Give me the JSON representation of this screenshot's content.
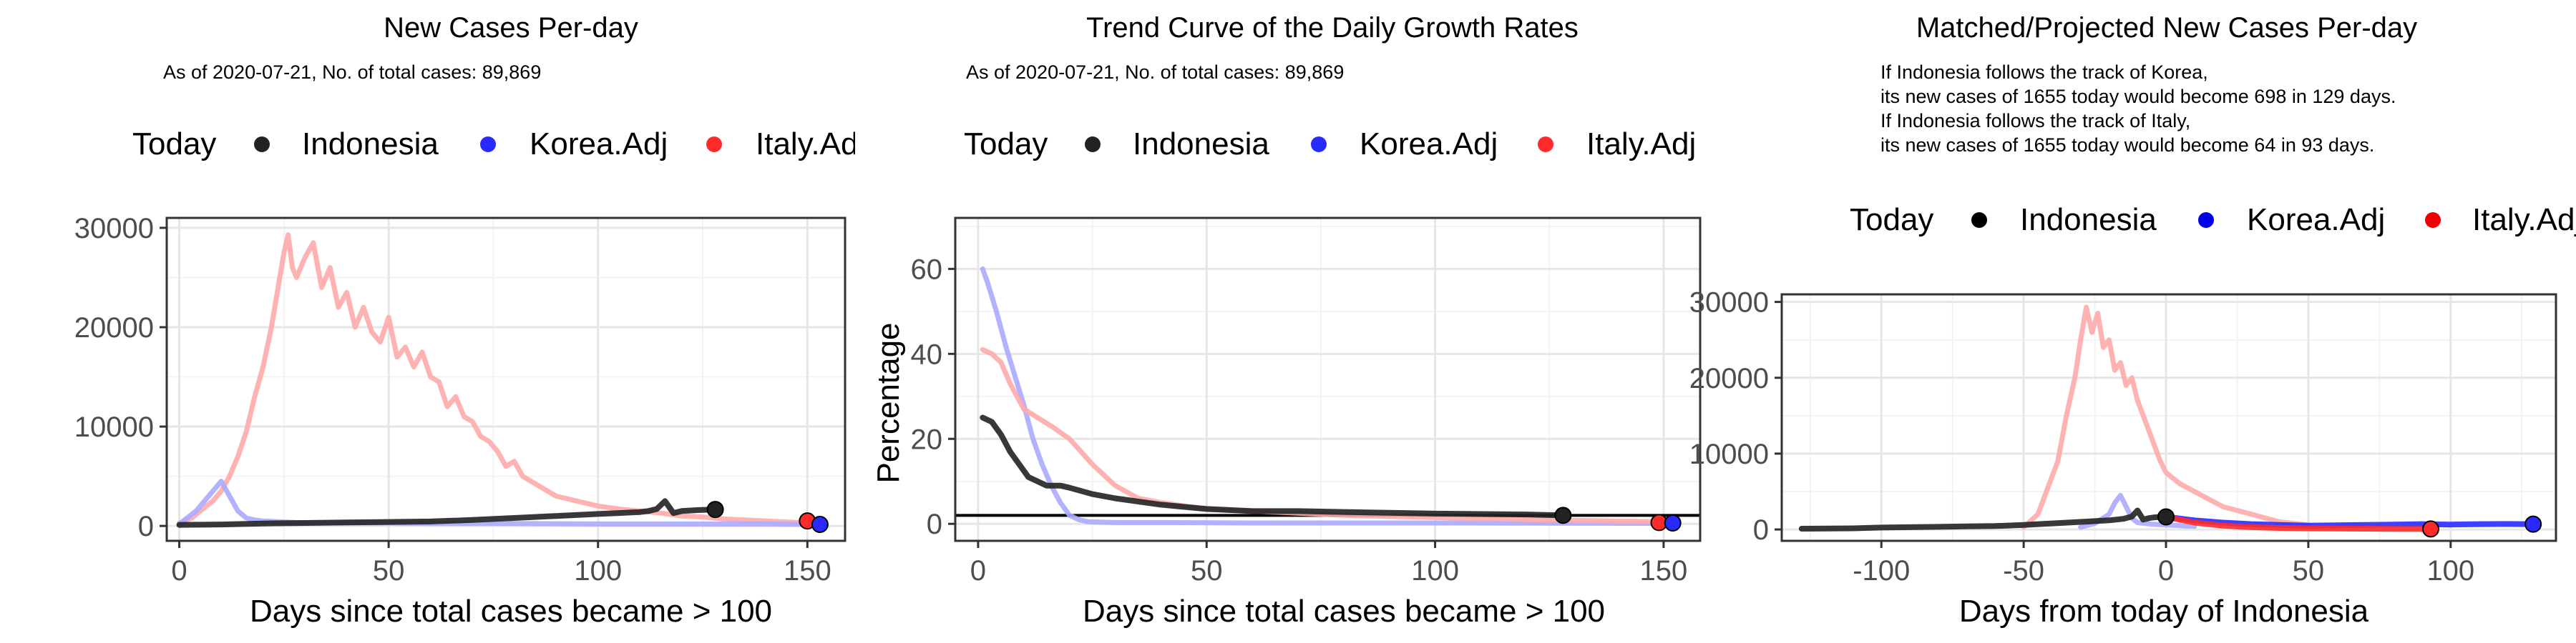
{
  "colors": {
    "today": "#222222",
    "indonesia": "#222222",
    "korea": "#2a2aff",
    "italy": "#ff2a2a",
    "korea_faded": "#aaaaff",
    "italy_faded": "#ffaaaa",
    "grid_major": "#e6e6e6",
    "grid_minor": "#f3f3f3"
  },
  "legend_labels": [
    "Today",
    "Indonesia",
    "Korea.Adj",
    "Italy.Adj"
  ],
  "chart_data": [
    {
      "type": "line",
      "title": "New Cases Per-day",
      "subtitle": "As of 2020-07-21, No. of total cases: 89,869",
      "xlabel": "Days since total cases became > 100",
      "ylabel": "",
      "xlim": [
        -3,
        159
      ],
      "ylim": [
        -1500,
        31000
      ],
      "xticks": [
        0,
        50,
        100,
        150
      ],
      "yticks": [
        0,
        10000,
        20000,
        30000
      ],
      "legend": [
        "Today",
        "Indonesia",
        "Korea.Adj",
        "Italy.Adj"
      ],
      "legend_position": "top",
      "grid": true,
      "series": [
        {
          "name": "Italy.Adj",
          "style": "faded",
          "color": "#ffaaaa",
          "x": [
            0,
            3,
            5,
            8,
            10,
            12,
            14,
            16,
            18,
            20,
            22,
            24,
            25,
            26,
            27,
            28,
            30,
            32,
            34,
            36,
            38,
            40,
            42,
            44,
            46,
            48,
            50,
            52,
            54,
            56,
            58,
            60,
            62,
            64,
            66,
            68,
            70,
            72,
            74,
            76,
            78,
            80,
            82,
            84,
            86,
            88,
            90,
            95,
            100,
            105,
            110,
            115,
            120,
            125,
            130,
            135,
            140,
            145,
            150
          ],
          "y": [
            300,
            800,
            1500,
            2500,
            3500,
            5000,
            7000,
            9500,
            13000,
            16000,
            20000,
            25000,
            27500,
            29300,
            26000,
            25000,
            27000,
            28500,
            24000,
            26000,
            22000,
            23500,
            20000,
            22000,
            19500,
            18500,
            21000,
            17000,
            18000,
            16000,
            17500,
            15000,
            14500,
            12000,
            13000,
            11000,
            10500,
            9000,
            8500,
            7500,
            6000,
            6500,
            5000,
            4500,
            4000,
            3500,
            3000,
            2500,
            2000,
            1700,
            1500,
            1300,
            1000,
            900,
            700,
            600,
            500,
            400,
            300
          ]
        },
        {
          "name": "Korea.Adj",
          "style": "faded",
          "color": "#aaaaff",
          "x": [
            0,
            4,
            8,
            10,
            12,
            14,
            16,
            18,
            20,
            25,
            30,
            40,
            50,
            60,
            80,
            100,
            120,
            140,
            152
          ],
          "y": [
            200,
            1500,
            3500,
            4500,
            3000,
            1500,
            800,
            600,
            500,
            400,
            300,
            300,
            300,
            250,
            250,
            200,
            200,
            200,
            150
          ]
        },
        {
          "name": "Indonesia",
          "style": "solid",
          "color": "#222222",
          "x": [
            0,
            10,
            20,
            30,
            40,
            50,
            60,
            70,
            80,
            90,
            100,
            105,
            110,
            112,
            114,
            116,
            118,
            120,
            124,
            128
          ],
          "y": [
            100,
            150,
            250,
            300,
            350,
            400,
            450,
            600,
            800,
            1000,
            1200,
            1300,
            1400,
            1500,
            1700,
            2500,
            1300,
            1500,
            1600,
            1655
          ]
        }
      ],
      "today_points": [
        {
          "name": "Indonesia",
          "x": 128,
          "y": 1655
        },
        {
          "name": "Italy.Adj",
          "x": 150,
          "y": 500
        },
        {
          "name": "Korea.Adj",
          "x": 153,
          "y": 150
        }
      ]
    },
    {
      "type": "line",
      "title": "Trend Curve of the Daily Growth Rates",
      "subtitle": "As of 2020-07-21, No. of total cases: 89,869",
      "xlabel": "Days since total cases became > 100",
      "ylabel": "Percentage",
      "xlim": [
        -5,
        158
      ],
      "ylim": [
        -4,
        72
      ],
      "xticks": [
        0,
        50,
        100,
        150
      ],
      "yticks": [
        0,
        20,
        40,
        60
      ],
      "reference_line_y": 2,
      "legend": [
        "Today",
        "Indonesia",
        "Korea.Adj",
        "Italy.Adj"
      ],
      "legend_position": "top",
      "grid": true,
      "series": [
        {
          "name": "Korea.Adj",
          "style": "faded",
          "color": "#aaaaff",
          "x": [
            1,
            2,
            4,
            6,
            8,
            10,
            12,
            14,
            16,
            18,
            20,
            22,
            24,
            30,
            40,
            60,
            100,
            150
          ],
          "y": [
            60,
            57,
            50,
            42,
            35,
            28,
            20,
            14,
            9,
            5,
            2,
            1,
            0.5,
            0.3,
            0.3,
            0.2,
            0.2,
            0.1
          ]
        },
        {
          "name": "Italy.Adj",
          "style": "faded",
          "color": "#ffaaaa",
          "x": [
            1,
            3,
            5,
            7,
            10,
            13,
            16,
            20,
            25,
            30,
            35,
            40,
            50,
            60,
            70,
            80,
            100,
            120,
            148
          ],
          "y": [
            41,
            40,
            38,
            33,
            27,
            25,
            23,
            20,
            14,
            9,
            6,
            5,
            3.5,
            3,
            2.5,
            2,
            1.5,
            1,
            0.5
          ]
        },
        {
          "name": "Indonesia",
          "style": "solid",
          "color": "#222222",
          "x": [
            1,
            3,
            5,
            7,
            9,
            11,
            13,
            15,
            18,
            20,
            25,
            30,
            40,
            50,
            60,
            70,
            80,
            90,
            100,
            110,
            120,
            128
          ],
          "y": [
            25,
            24,
            21,
            17,
            14,
            11,
            10,
            9,
            9,
            8.5,
            7,
            6,
            4.5,
            3.5,
            3,
            3,
            2.8,
            2.6,
            2.4,
            2.3,
            2.2,
            2
          ]
        }
      ],
      "today_points": [
        {
          "name": "Indonesia",
          "x": 128,
          "y": 2
        },
        {
          "name": "Italy.Adj",
          "x": 149,
          "y": 0.3
        },
        {
          "name": "Korea.Adj",
          "x": 152,
          "y": 0.2
        }
      ]
    },
    {
      "type": "line",
      "title": "Matched/Projected New Cases Per-day",
      "subtitle": "",
      "notes": [
        "If Indonesia follows the track of Korea,",
        "its new cases of 1655 today would become 698 in 129 days.",
        "If Indonesia follows the track of Italy,",
        "its new cases of 1655 today would become 64 in 93 days."
      ],
      "xlabel": "Days from today of Indonesia",
      "ylabel": "",
      "xlim": [
        -135,
        137
      ],
      "ylim": [
        -1500,
        31000
      ],
      "xticks": [
        -100,
        -50,
        0,
        50,
        100
      ],
      "yticks": [
        0,
        10000,
        20000,
        30000
      ],
      "legend": [
        "Today",
        "Indonesia",
        "Korea.Adj",
        "Italy.Adj"
      ],
      "legend_position": "top",
      "grid": true,
      "series": [
        {
          "name": "Italy.Adj (matched)",
          "style": "faded",
          "color": "#ffaaaa",
          "x": [
            -50,
            -45,
            -42,
            -38,
            -35,
            -32,
            -30,
            -28,
            -26,
            -24,
            -22,
            -20,
            -18,
            -16,
            -14,
            -12,
            -10,
            -8,
            -6,
            -4,
            -2,
            0,
            5,
            10,
            15,
            20,
            25,
            30,
            35,
            40,
            45,
            50
          ],
          "y": [
            300,
            2000,
            5000,
            9000,
            15000,
            20000,
            25000,
            29300,
            26000,
            28500,
            24000,
            25000,
            21000,
            22000,
            19000,
            20000,
            17000,
            15000,
            13000,
            11000,
            9000,
            7500,
            6000,
            5000,
            4000,
            3000,
            2500,
            2000,
            1500,
            1000,
            800,
            600
          ]
        },
        {
          "name": "Korea.Adj (matched)",
          "style": "faded",
          "color": "#aaaaff",
          "x": [
            -30,
            -25,
            -20,
            -18,
            -16,
            -14,
            -12,
            -10,
            -5,
            0,
            5,
            10
          ],
          "y": [
            300,
            800,
            2000,
            3500,
            4500,
            3000,
            1500,
            900,
            700,
            600,
            500,
            400
          ]
        },
        {
          "name": "Indonesia",
          "style": "solid",
          "color": "#222222",
          "x": [
            -128,
            -110,
            -100,
            -90,
            -80,
            -70,
            -60,
            -50,
            -40,
            -30,
            -20,
            -15,
            -12,
            -10,
            -8,
            -6,
            -4,
            -2,
            0
          ],
          "y": [
            100,
            150,
            250,
            300,
            350,
            400,
            450,
            600,
            800,
            1000,
            1200,
            1400,
            1700,
            2500,
            1300,
            1500,
            1600,
            1650,
            1655
          ]
        },
        {
          "name": "Korea.Adj (projected)",
          "style": "solid",
          "color": "#2a2aff",
          "x": [
            0,
            10,
            20,
            30,
            40,
            50,
            60,
            70,
            80,
            90,
            100,
            110,
            120,
            129
          ],
          "y": [
            1655,
            1200,
            900,
            700,
            600,
            500,
            550,
            600,
            650,
            700,
            650,
            700,
            720,
            698
          ]
        },
        {
          "name": "Italy.Adj (projected)",
          "style": "solid",
          "color": "#ff2a2a",
          "x": [
            0,
            10,
            20,
            30,
            40,
            50,
            60,
            70,
            80,
            93
          ],
          "y": [
            1655,
            900,
            500,
            300,
            200,
            150,
            120,
            100,
            80,
            64
          ]
        }
      ],
      "today_points": [
        {
          "name": "Indonesia",
          "x": 0,
          "y": 1655
        },
        {
          "name": "Italy.Adj",
          "x": 93,
          "y": 64
        },
        {
          "name": "Korea.Adj",
          "x": 129,
          "y": 698
        }
      ]
    }
  ]
}
